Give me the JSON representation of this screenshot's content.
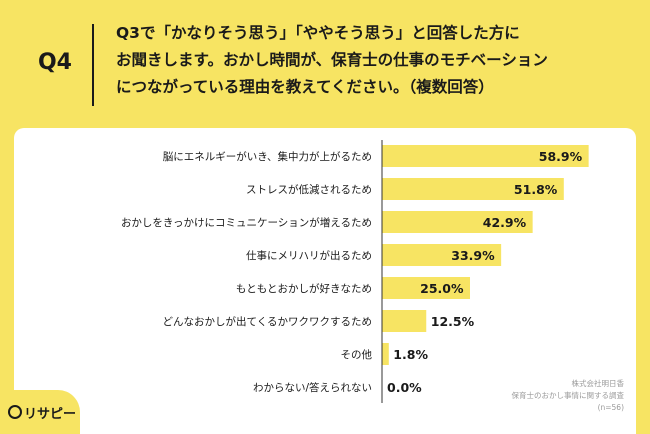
{
  "question": {
    "label": "Q4",
    "lines": [
      "Q3で「かなりそう思う」「ややそう思う」と回答した方に",
      "お聞きします。おかし時間が、保育士の仕事のモチベーション",
      "につながっている理由を教えてください。（複数回答）"
    ]
  },
  "chart_data": {
    "type": "bar",
    "orientation": "horizontal",
    "categories": [
      "脳にエネルギーがいき、集中力が上がるため",
      "ストレスが低減されるため",
      "おかしをきっかけにコミュニケーションが増えるため",
      "仕事にメリハリが出るため",
      "もともとおかしが好きなため",
      "どんなおかしが出てくるかワクワクするため",
      "その他",
      "わからない/答えられない"
    ],
    "values": [
      58.9,
      51.8,
      42.9,
      33.9,
      25.0,
      12.5,
      1.8,
      0.0
    ],
    "value_labels": [
      "58.9%",
      "51.8%",
      "42.9%",
      "33.9%",
      "25.0%",
      "12.5%",
      "1.8%",
      "0.0%"
    ],
    "xlim": [
      0,
      100
    ],
    "bar_color": "#f7e463"
  },
  "source": {
    "company": "株式会社明日香",
    "survey": "保育士のおかし事情に関する調査",
    "n": "(n=56)"
  },
  "logo": {
    "text": "リサピー"
  }
}
